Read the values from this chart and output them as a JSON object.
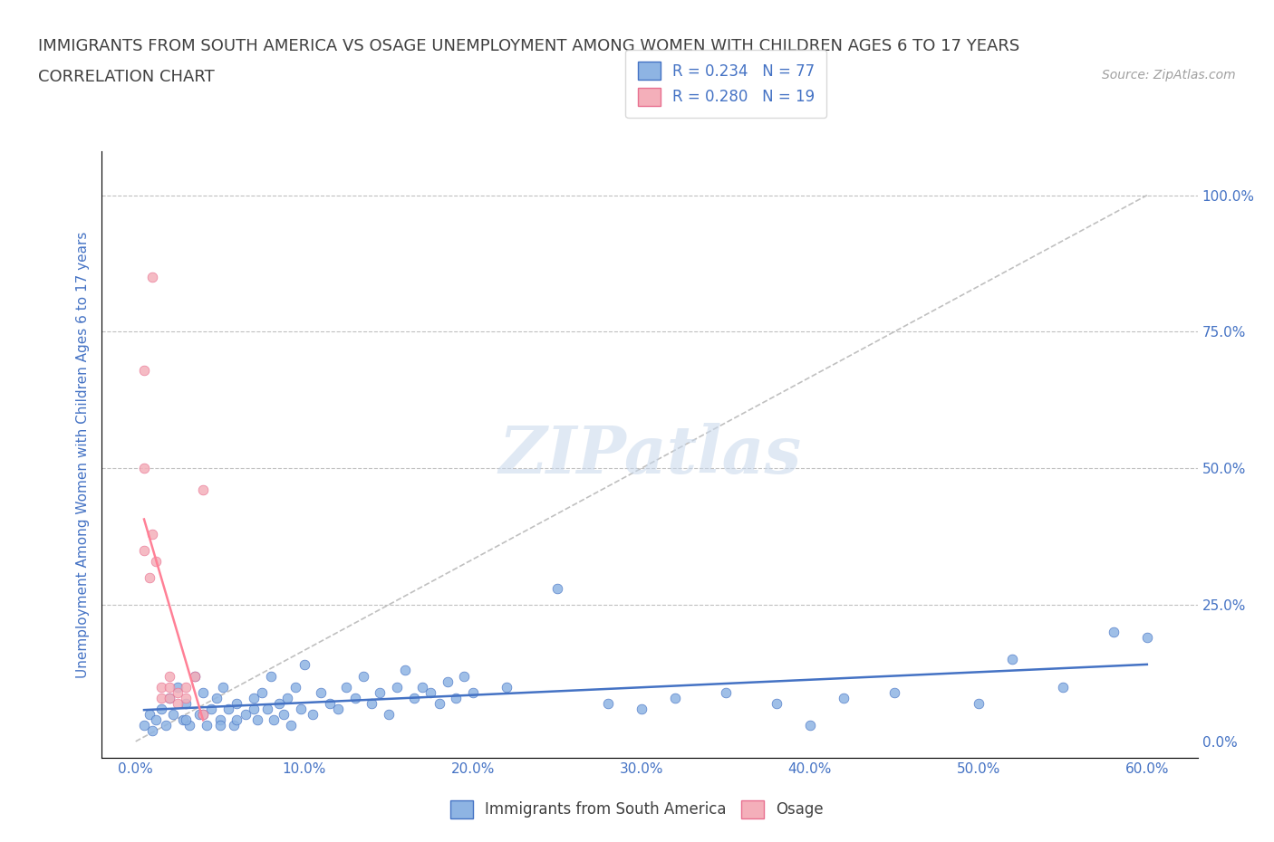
{
  "title": "IMMIGRANTS FROM SOUTH AMERICA VS OSAGE UNEMPLOYMENT AMONG WOMEN WITH CHILDREN AGES 6 TO 17 YEARS",
  "subtitle": "CORRELATION CHART",
  "source": "Source: ZipAtlas.com",
  "xlabel": "",
  "ylabel": "Unemployment Among Women with Children Ages 6 to 17 years",
  "x_tick_labels": [
    "0.0%",
    "10.0%",
    "20.0%",
    "30.0%",
    "40.0%",
    "50.0%",
    "60.0%"
  ],
  "x_tick_values": [
    0.0,
    0.1,
    0.2,
    0.3,
    0.4,
    0.5,
    0.6
  ],
  "y_tick_labels": [
    "0.0%",
    "25.0%",
    "50.0%",
    "75.0%",
    "100.0%"
  ],
  "y_tick_values": [
    0.0,
    0.25,
    0.5,
    0.75,
    1.0
  ],
  "xlim": [
    -0.02,
    0.63
  ],
  "ylim": [
    -0.03,
    1.08
  ],
  "blue_color": "#8EB4E3",
  "pink_color": "#F4AFBA",
  "blue_line_color": "#4472C4",
  "pink_line_color": "#FF8096",
  "legend_R_blue": "R = 0.234",
  "legend_N_blue": "N = 77",
  "legend_R_pink": "R = 0.280",
  "legend_N_pink": "N = 19",
  "watermark": "ZIPatlas",
  "title_color": "#404040",
  "axis_label_color": "#4472C4",
  "tick_label_color": "#4472C4",
  "blue_scatter": [
    [
      0.005,
      0.03
    ],
    [
      0.008,
      0.05
    ],
    [
      0.01,
      0.02
    ],
    [
      0.012,
      0.04
    ],
    [
      0.015,
      0.06
    ],
    [
      0.018,
      0.03
    ],
    [
      0.02,
      0.08
    ],
    [
      0.022,
      0.05
    ],
    [
      0.025,
      0.1
    ],
    [
      0.028,
      0.04
    ],
    [
      0.03,
      0.07
    ],
    [
      0.032,
      0.03
    ],
    [
      0.035,
      0.12
    ],
    [
      0.038,
      0.05
    ],
    [
      0.04,
      0.09
    ],
    [
      0.042,
      0.03
    ],
    [
      0.045,
      0.06
    ],
    [
      0.048,
      0.08
    ],
    [
      0.05,
      0.04
    ],
    [
      0.052,
      0.1
    ],
    [
      0.055,
      0.06
    ],
    [
      0.058,
      0.03
    ],
    [
      0.06,
      0.07
    ],
    [
      0.065,
      0.05
    ],
    [
      0.07,
      0.08
    ],
    [
      0.072,
      0.04
    ],
    [
      0.075,
      0.09
    ],
    [
      0.078,
      0.06
    ],
    [
      0.08,
      0.12
    ],
    [
      0.082,
      0.04
    ],
    [
      0.085,
      0.07
    ],
    [
      0.088,
      0.05
    ],
    [
      0.09,
      0.08
    ],
    [
      0.092,
      0.03
    ],
    [
      0.095,
      0.1
    ],
    [
      0.098,
      0.06
    ],
    [
      0.1,
      0.14
    ],
    [
      0.105,
      0.05
    ],
    [
      0.11,
      0.09
    ],
    [
      0.115,
      0.07
    ],
    [
      0.12,
      0.06
    ],
    [
      0.125,
      0.1
    ],
    [
      0.13,
      0.08
    ],
    [
      0.135,
      0.12
    ],
    [
      0.14,
      0.07
    ],
    [
      0.145,
      0.09
    ],
    [
      0.15,
      0.05
    ],
    [
      0.155,
      0.1
    ],
    [
      0.16,
      0.13
    ],
    [
      0.165,
      0.08
    ],
    [
      0.17,
      0.1
    ],
    [
      0.175,
      0.09
    ],
    [
      0.18,
      0.07
    ],
    [
      0.185,
      0.11
    ],
    [
      0.19,
      0.08
    ],
    [
      0.195,
      0.12
    ],
    [
      0.2,
      0.09
    ],
    [
      0.22,
      0.1
    ],
    [
      0.25,
      0.28
    ],
    [
      0.28,
      0.07
    ],
    [
      0.3,
      0.06
    ],
    [
      0.32,
      0.08
    ],
    [
      0.35,
      0.09
    ],
    [
      0.38,
      0.07
    ],
    [
      0.4,
      0.03
    ],
    [
      0.42,
      0.08
    ],
    [
      0.45,
      0.09
    ],
    [
      0.5,
      0.07
    ],
    [
      0.52,
      0.15
    ],
    [
      0.55,
      0.1
    ],
    [
      0.58,
      0.2
    ],
    [
      0.6,
      0.19
    ],
    [
      0.03,
      0.04
    ],
    [
      0.04,
      0.05
    ],
    [
      0.05,
      0.03
    ],
    [
      0.06,
      0.04
    ],
    [
      0.07,
      0.06
    ]
  ],
  "pink_scatter": [
    [
      0.005,
      0.68
    ],
    [
      0.005,
      0.5
    ],
    [
      0.005,
      0.35
    ],
    [
      0.008,
      0.3
    ],
    [
      0.01,
      0.85
    ],
    [
      0.01,
      0.38
    ],
    [
      0.012,
      0.33
    ],
    [
      0.015,
      0.1
    ],
    [
      0.015,
      0.08
    ],
    [
      0.02,
      0.12
    ],
    [
      0.02,
      0.1
    ],
    [
      0.02,
      0.08
    ],
    [
      0.025,
      0.09
    ],
    [
      0.025,
      0.07
    ],
    [
      0.03,
      0.1
    ],
    [
      0.03,
      0.08
    ],
    [
      0.035,
      0.12
    ],
    [
      0.04,
      0.46
    ],
    [
      0.04,
      0.05
    ]
  ]
}
